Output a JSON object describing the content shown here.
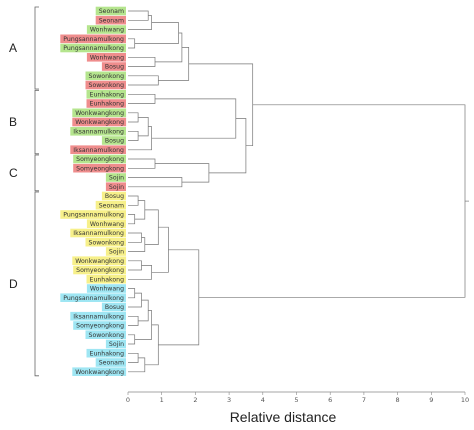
{
  "colors": {
    "green": "#b5e58e",
    "red": "#ef8d8d",
    "yellow": "#f7f08a",
    "cyan": "#9fe6f3",
    "branch": "#777777"
  },
  "chart_data": {
    "type": "dendrogram",
    "xlabel": "Relative distance",
    "xlim": [
      0,
      10
    ],
    "ticks": [
      "0",
      "1",
      "2",
      "3",
      "4",
      "5",
      "6",
      "7",
      "8",
      "9",
      "10"
    ],
    "groups": [
      "A",
      "B",
      "C",
      "D"
    ],
    "leaves": [
      {
        "label": "Seonam",
        "color": "green"
      },
      {
        "label": "Seonam",
        "color": "red"
      },
      {
        "label": "Wonhwang",
        "color": "green"
      },
      {
        "label": "Pungsannamulkong",
        "color": "red"
      },
      {
        "label": "Pungsannamulkong",
        "color": "green"
      },
      {
        "label": "Wonhwang",
        "color": "red"
      },
      {
        "label": "Bosug",
        "color": "red"
      },
      {
        "label": "Sowonkong",
        "color": "green"
      },
      {
        "label": "Sowonkong",
        "color": "red"
      },
      {
        "label": "Eunhakong",
        "color": "green"
      },
      {
        "label": "Eunhakong",
        "color": "red"
      },
      {
        "label": "Wonkwangkong",
        "color": "green"
      },
      {
        "label": "Wonkwangkong",
        "color": "red"
      },
      {
        "label": "Iksannamulkong",
        "color": "green"
      },
      {
        "label": "Bosug",
        "color": "green"
      },
      {
        "label": "Iksannamulkong",
        "color": "red"
      },
      {
        "label": "Somyeongkong",
        "color": "green"
      },
      {
        "label": "Somyeongkong",
        "color": "red"
      },
      {
        "label": "Sojin",
        "color": "green"
      },
      {
        "label": "Sojin",
        "color": "red"
      },
      {
        "label": "Bosug",
        "color": "yellow"
      },
      {
        "label": "Seonam",
        "color": "yellow"
      },
      {
        "label": "Pungsannamulkong",
        "color": "yellow"
      },
      {
        "label": "Wonhwang",
        "color": "yellow"
      },
      {
        "label": "Iksannamulkong",
        "color": "yellow"
      },
      {
        "label": "Sowonkong",
        "color": "yellow"
      },
      {
        "label": "Sojin",
        "color": "yellow"
      },
      {
        "label": "Wonkwangkong",
        "color": "yellow"
      },
      {
        "label": "Somyeongkong",
        "color": "yellow"
      },
      {
        "label": "Eunhakong",
        "color": "yellow"
      },
      {
        "label": "Wonhwang",
        "color": "cyan"
      },
      {
        "label": "Pungsannamulkong",
        "color": "cyan"
      },
      {
        "label": "Bosug",
        "color": "cyan"
      },
      {
        "label": "Iksannamulkong",
        "color": "cyan"
      },
      {
        "label": "Somyeongkong",
        "color": "cyan"
      },
      {
        "label": "Sowonkong",
        "color": "cyan"
      },
      {
        "label": "Sojin",
        "color": "cyan"
      },
      {
        "label": "Eunhakong",
        "color": "cyan"
      },
      {
        "label": "Seonam",
        "color": "cyan"
      },
      {
        "label": "Wonkwangkong",
        "color": "cyan"
      }
    ],
    "merges": [
      {
        "a": "L0",
        "b": "L1",
        "d": 0.6
      },
      {
        "a": "M0",
        "b": "L2",
        "d": 0.7
      },
      {
        "a": "L3",
        "b": "L4",
        "d": 0.2
      },
      {
        "a": "M1",
        "b": "M2",
        "d": 1.5
      },
      {
        "a": "L5",
        "b": "L6",
        "d": 0.8
      },
      {
        "a": "M3",
        "b": "M4",
        "d": 1.6
      },
      {
        "a": "L7",
        "b": "L8",
        "d": 0.9
      },
      {
        "a": "M5",
        "b": "M6",
        "d": 1.8
      },
      {
        "a": "L9",
        "b": "L10",
        "d": 0.8
      },
      {
        "a": "L11",
        "b": "L12",
        "d": 0.3
      },
      {
        "a": "L13",
        "b": "L14",
        "d": 0.3
      },
      {
        "a": "M9",
        "b": "M10",
        "d": 0.6
      },
      {
        "a": "M11",
        "b": "L15",
        "d": 0.7
      },
      {
        "a": "M8",
        "b": "M12",
        "d": 3.2
      },
      {
        "a": "L16",
        "b": "L17",
        "d": 0.8
      },
      {
        "a": "L18",
        "b": "L19",
        "d": 1.6
      },
      {
        "a": "M14",
        "b": "M15",
        "d": 2.4
      },
      {
        "a": "M13",
        "b": "M16",
        "d": 3.5
      },
      {
        "a": "M7",
        "b": "M17",
        "d": 3.7
      },
      {
        "a": "L20",
        "b": "L21",
        "d": 0.3
      },
      {
        "a": "L22",
        "b": "L23",
        "d": 0.2
      },
      {
        "a": "M19",
        "b": "M20",
        "d": 0.5
      },
      {
        "a": "L24",
        "b": "L25",
        "d": 0.4
      },
      {
        "a": "M22",
        "b": "L26",
        "d": 0.5
      },
      {
        "a": "M21",
        "b": "M23",
        "d": 0.9
      },
      {
        "a": "L27",
        "b": "L28",
        "d": 0.4
      },
      {
        "a": "M25",
        "b": "L29",
        "d": 0.7
      },
      {
        "a": "M24",
        "b": "M26",
        "d": 1.2
      },
      {
        "a": "L30",
        "b": "L31",
        "d": 0.2
      },
      {
        "a": "M28",
        "b": "L32",
        "d": 0.4
      },
      {
        "a": "L33",
        "b": "L34",
        "d": 0.3
      },
      {
        "a": "M29",
        "b": "M30",
        "d": 0.6
      },
      {
        "a": "L35",
        "b": "L36",
        "d": 0.2
      },
      {
        "a": "M31",
        "b": "M32",
        "d": 0.7
      },
      {
        "a": "L37",
        "b": "L38",
        "d": 0.3
      },
      {
        "a": "M34",
        "b": "L39",
        "d": 0.5
      },
      {
        "a": "M33",
        "b": "M35",
        "d": 0.9
      },
      {
        "a": "M27",
        "b": "M36",
        "d": 2.1
      },
      {
        "a": "M18",
        "b": "M37",
        "d": 10.0
      }
    ]
  }
}
